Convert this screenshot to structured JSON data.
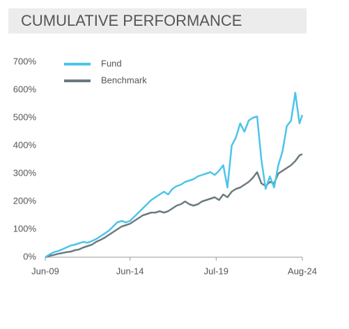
{
  "chart_data": {
    "type": "line",
    "title": "CUMULATIVE PERFORMANCE",
    "x": [
      "2009-06",
      "2009-09",
      "2009-12",
      "2010-03",
      "2010-06",
      "2010-09",
      "2010-12",
      "2011-03",
      "2011-06",
      "2011-09",
      "2011-12",
      "2012-03",
      "2012-06",
      "2012-09",
      "2012-12",
      "2013-03",
      "2013-06",
      "2013-09",
      "2013-12",
      "2014-03",
      "2014-06",
      "2014-09",
      "2014-12",
      "2015-03",
      "2015-06",
      "2015-09",
      "2015-12",
      "2016-03",
      "2016-06",
      "2016-09",
      "2016-12",
      "2017-03",
      "2017-06",
      "2017-09",
      "2017-12",
      "2018-03",
      "2018-06",
      "2018-09",
      "2018-12",
      "2019-03",
      "2019-06",
      "2019-09",
      "2019-12",
      "2020-03",
      "2020-06",
      "2020-09",
      "2020-12",
      "2021-03",
      "2021-06",
      "2021-09",
      "2021-12",
      "2022-03",
      "2022-06",
      "2022-09",
      "2022-12",
      "2023-03",
      "2023-06",
      "2023-09",
      "2023-12",
      "2024-03",
      "2024-06",
      "2024-08"
    ],
    "series": [
      {
        "name": "Fund",
        "color": "#4cc4ea",
        "values": [
          0,
          10,
          18,
          22,
          28,
          35,
          42,
          45,
          50,
          55,
          52,
          58,
          65,
          75,
          85,
          95,
          110,
          125,
          130,
          125,
          130,
          145,
          160,
          175,
          190,
          205,
          215,
          225,
          235,
          225,
          245,
          255,
          260,
          270,
          275,
          280,
          290,
          295,
          300,
          305,
          295,
          310,
          330,
          250,
          400,
          430,
          480,
          450,
          490,
          500,
          505,
          350,
          245,
          290,
          250,
          330,
          380,
          470,
          490,
          590,
          480,
          510
        ]
      },
      {
        "name": "Benchmark",
        "color": "#6b7a80",
        "values": [
          0,
          5,
          8,
          12,
          15,
          18,
          20,
          25,
          28,
          35,
          40,
          45,
          55,
          62,
          70,
          80,
          90,
          100,
          110,
          115,
          120,
          130,
          140,
          150,
          155,
          160,
          160,
          165,
          160,
          165,
          175,
          185,
          190,
          200,
          190,
          185,
          190,
          200,
          205,
          210,
          215,
          205,
          225,
          215,
          235,
          245,
          250,
          260,
          270,
          285,
          305,
          265,
          255,
          270,
          265,
          300,
          310,
          320,
          330,
          345,
          365,
          370
        ]
      }
    ],
    "xlim": [
      "2009-06",
      "2024-08"
    ],
    "xticks": [
      {
        "value": "2009-06",
        "label": "Jun-09"
      },
      {
        "value": "2014-06",
        "label": "Jun-14"
      },
      {
        "value": "2019-07",
        "label": "Jul-19"
      },
      {
        "value": "2024-08",
        "label": "Aug-24"
      }
    ],
    "ylim": [
      0,
      700
    ],
    "yticks": [
      {
        "value": 0,
        "label": "0%"
      },
      {
        "value": 100,
        "label": "100%"
      },
      {
        "value": 200,
        "label": "200%"
      },
      {
        "value": 300,
        "label": "300%"
      },
      {
        "value": 400,
        "label": "400%"
      },
      {
        "value": 500,
        "label": "500%"
      },
      {
        "value": 600,
        "label": "600%"
      },
      {
        "value": 700,
        "label": "700%"
      }
    ],
    "grid": false,
    "legend": "top-left"
  }
}
